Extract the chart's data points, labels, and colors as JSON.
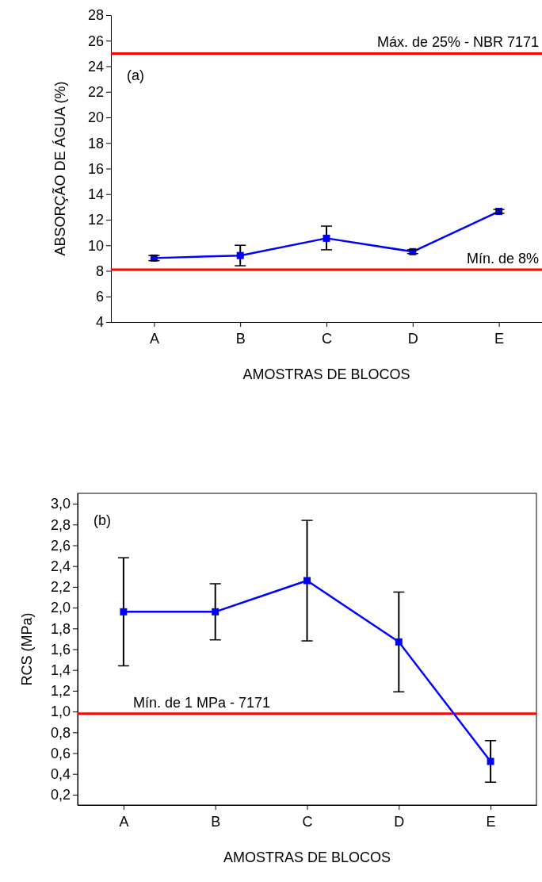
{
  "chart_data": [
    {
      "type": "line",
      "xlabel": "AMOSTRAS DE BLOCOS",
      "ylabel": "ABSORÇÃO DE ÁGUA (%)",
      "categories": [
        "A",
        "B",
        "C",
        "D",
        "E"
      ],
      "series": [
        {
          "color": "#0000ff",
          "values": [
            9.0,
            9.2,
            10.55,
            9.5,
            12.65
          ],
          "errors": [
            [
              8.8,
              9.2
            ],
            [
              8.4,
              10.0
            ],
            [
              9.65,
              11.5
            ],
            [
              9.35,
              9.65
            ],
            [
              12.5,
              12.8
            ]
          ]
        }
      ],
      "ylim": [
        4,
        28
      ],
      "yticks": [
        4,
        6,
        8,
        10,
        12,
        14,
        16,
        18,
        20,
        22,
        24,
        26,
        28
      ],
      "marker": "square",
      "line_style": "solid",
      "grid": false,
      "ref_lines": [
        {
          "axis": "y",
          "value": 25,
          "label": "Máx. de 25% - NBR 7171",
          "color": "#ff0000"
        },
        {
          "axis": "y",
          "value": 8.1,
          "label": "Mín. de 8%",
          "color": "#ff0000"
        }
      ],
      "annotations": [
        "(a)"
      ]
    },
    {
      "type": "line",
      "xlabel": "AMOSTRAS DE BLOCOS",
      "ylabel": "RCS (MPa)",
      "categories": [
        "A",
        "B",
        "C",
        "D",
        "E"
      ],
      "series": [
        {
          "color": "#0000ff",
          "values": [
            1.96,
            1.96,
            2.26,
            1.67,
            0.52
          ],
          "errors": [
            [
              1.44,
              2.48
            ],
            [
              1.69,
              2.23
            ],
            [
              1.68,
              2.84
            ],
            [
              1.19,
              2.15
            ],
            [
              0.32,
              0.72
            ]
          ]
        }
      ],
      "ylim": [
        0.1,
        3.1
      ],
      "yticks": [
        {
          "value": 0.2,
          "label": "0,2"
        },
        {
          "value": 0.4,
          "label": "0,4"
        },
        {
          "value": 0.6,
          "label": "0,6"
        },
        {
          "value": 0.8,
          "label": "0,8"
        },
        {
          "value": 1.0,
          "label": "1,0"
        },
        {
          "value": 1.2,
          "label": "1,2"
        },
        {
          "value": 1.4,
          "label": "1,4"
        },
        {
          "value": 1.6,
          "label": "1,6"
        },
        {
          "value": 1.8,
          "label": "1,8"
        },
        {
          "value": 2.0,
          "label": "2,0"
        },
        {
          "value": 2.2,
          "label": "2,2"
        },
        {
          "value": 2.4,
          "label": "2,4"
        },
        {
          "value": 2.6,
          "label": "2,6"
        },
        {
          "value": 2.8,
          "label": "2,8"
        },
        {
          "value": 3.0,
          "label": "3,0"
        }
      ],
      "marker": "square",
      "line_style": "solid",
      "grid": false,
      "ref_lines": [
        {
          "axis": "y",
          "value": 0.98,
          "label": "Mín. de 1 MPa - 7171",
          "color": "#ff0000"
        }
      ],
      "annotations": [
        "(b)"
      ]
    }
  ]
}
